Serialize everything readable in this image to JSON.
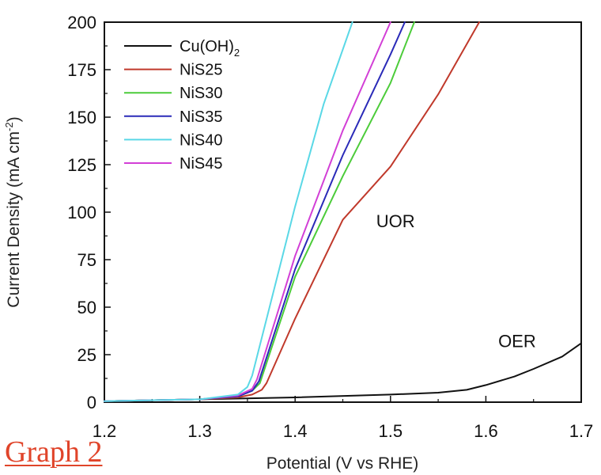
{
  "caption": "Graph 2",
  "chart_data": {
    "type": "line",
    "xlabel": "Potential (V vs RHE)",
    "ylabel_main": "Current Density (mA cm",
    "ylabel_sup": "-2",
    "ylabel_close": ")",
    "xlim": [
      1.2,
      1.7
    ],
    "ylim": [
      0,
      200
    ],
    "xticks": [
      "1.2",
      "1.3",
      "1.4",
      "1.5",
      "1.6",
      "1.7"
    ],
    "yticks": [
      "0",
      "25",
      "50",
      "75",
      "100",
      "125",
      "150",
      "175",
      "200"
    ],
    "legend_position": "top-left",
    "series": [
      {
        "name": "Cu(OH)",
        "name_sub": "2",
        "color": "#111111",
        "x": [
          1.2,
          1.3,
          1.4,
          1.5,
          1.55,
          1.58,
          1.6,
          1.63,
          1.65,
          1.68,
          1.7
        ],
        "y": [
          0.5,
          1.5,
          2.5,
          4,
          5,
          6.5,
          9,
          13.5,
          17.5,
          24,
          31
        ]
      },
      {
        "name": "NiS25",
        "color": "#c0392b",
        "x": [
          1.2,
          1.3,
          1.34,
          1.355,
          1.365,
          1.37,
          1.4,
          1.45,
          1.5,
          1.55,
          1.593
        ],
        "y": [
          0.5,
          1.5,
          2.5,
          4,
          6.5,
          10,
          44,
          96,
          124,
          162,
          200
        ]
      },
      {
        "name": "NiS30",
        "color": "#4ccc3a",
        "x": [
          1.2,
          1.3,
          1.34,
          1.355,
          1.363,
          1.4,
          1.45,
          1.5,
          1.525
        ],
        "y": [
          0.5,
          1.5,
          3,
          6,
          10,
          66,
          119,
          168,
          200
        ]
      },
      {
        "name": "NiS35",
        "color": "#2a2ab8",
        "x": [
          1.2,
          1.3,
          1.34,
          1.355,
          1.362,
          1.4,
          1.45,
          1.5,
          1.515
        ],
        "y": [
          0.5,
          1.5,
          3,
          6,
          11,
          70,
          130,
          183,
          200
        ]
      },
      {
        "name": "NiS40",
        "color": "#5ad8e6",
        "x": [
          1.2,
          1.3,
          1.34,
          1.35,
          1.355,
          1.4,
          1.43,
          1.46
        ],
        "y": [
          0.5,
          1.5,
          4,
          8,
          14,
          103,
          157,
          200
        ]
      },
      {
        "name": "NiS45",
        "color": "#d23fd6",
        "x": [
          1.2,
          1.3,
          1.34,
          1.355,
          1.36,
          1.4,
          1.45,
          1.5
        ],
        "y": [
          0.5,
          1.5,
          3.5,
          7,
          12,
          77,
          143,
          200
        ]
      }
    ],
    "annotations": [
      {
        "text": "UOR",
        "x": 1.485,
        "y": 92
      },
      {
        "text": "OER",
        "x": 1.613,
        "y": 29
      }
    ]
  }
}
